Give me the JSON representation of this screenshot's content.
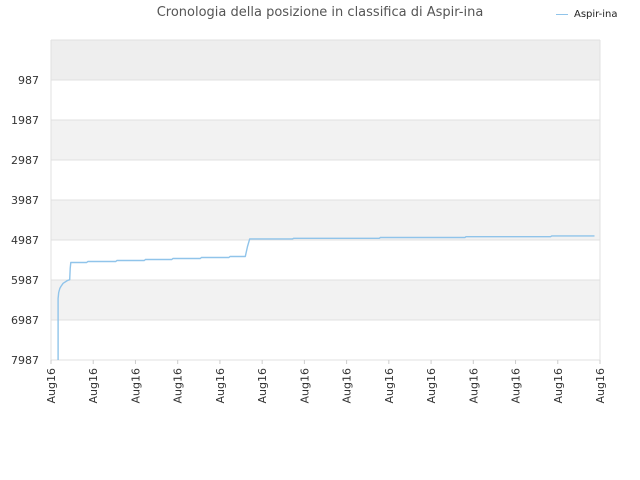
{
  "chart_data": {
    "type": "line",
    "title": "Cronologia della posizione in classifica di Aspir-ina",
    "legend": {
      "placement": "top-right",
      "entries": [
        "Aspir-ina"
      ]
    },
    "y_ticks": [
      "987",
      "1987",
      "2987",
      "3987",
      "4987",
      "5987",
      "6987",
      "7987"
    ],
    "x_ticks": [
      "Aug16",
      "Aug16",
      "Aug16",
      "Aug16",
      "Aug16",
      "Aug16",
      "Aug16",
      "Aug16",
      "Aug16",
      "Aug16",
      "Aug16",
      "Aug16",
      "Aug16",
      "Aug16"
    ],
    "ylim": [
      7987,
      -13
    ],
    "y_inverted": true,
    "xlim": [
      0,
      100
    ],
    "grid": true,
    "colors": {
      "line": "#90c4ea",
      "band": "#f2f2f2",
      "band_top": "#eeeeee",
      "grid": "#e0e0e0"
    },
    "series": [
      {
        "name": "Aspir-ina",
        "points": [
          [
            1.3,
            7987
          ],
          [
            1.3,
            6450
          ],
          [
            1.4,
            6300
          ],
          [
            1.6,
            6200
          ],
          [
            1.8,
            6150
          ],
          [
            2.2,
            6070
          ],
          [
            3.0,
            6000
          ],
          [
            3.4,
            5980
          ],
          [
            3.5,
            5700
          ],
          [
            3.6,
            5550
          ],
          [
            6.5,
            5550
          ],
          [
            6.7,
            5525
          ],
          [
            11.8,
            5525
          ],
          [
            12.0,
            5500
          ],
          [
            17.0,
            5500
          ],
          [
            17.2,
            5475
          ],
          [
            22.0,
            5475
          ],
          [
            22.2,
            5450
          ],
          [
            27.2,
            5450
          ],
          [
            27.4,
            5425
          ],
          [
            32.4,
            5425
          ],
          [
            32.6,
            5400
          ],
          [
            35.4,
            5400
          ],
          [
            35.8,
            5150
          ],
          [
            36.2,
            4960
          ],
          [
            36.6,
            4960
          ],
          [
            44.0,
            4960
          ],
          [
            44.2,
            4945
          ],
          [
            59.8,
            4945
          ],
          [
            60.0,
            4925
          ],
          [
            75.4,
            4925
          ],
          [
            75.6,
            4905
          ],
          [
            91.0,
            4905
          ],
          [
            91.2,
            4885
          ],
          [
            99.0,
            4885
          ]
        ]
      }
    ]
  }
}
